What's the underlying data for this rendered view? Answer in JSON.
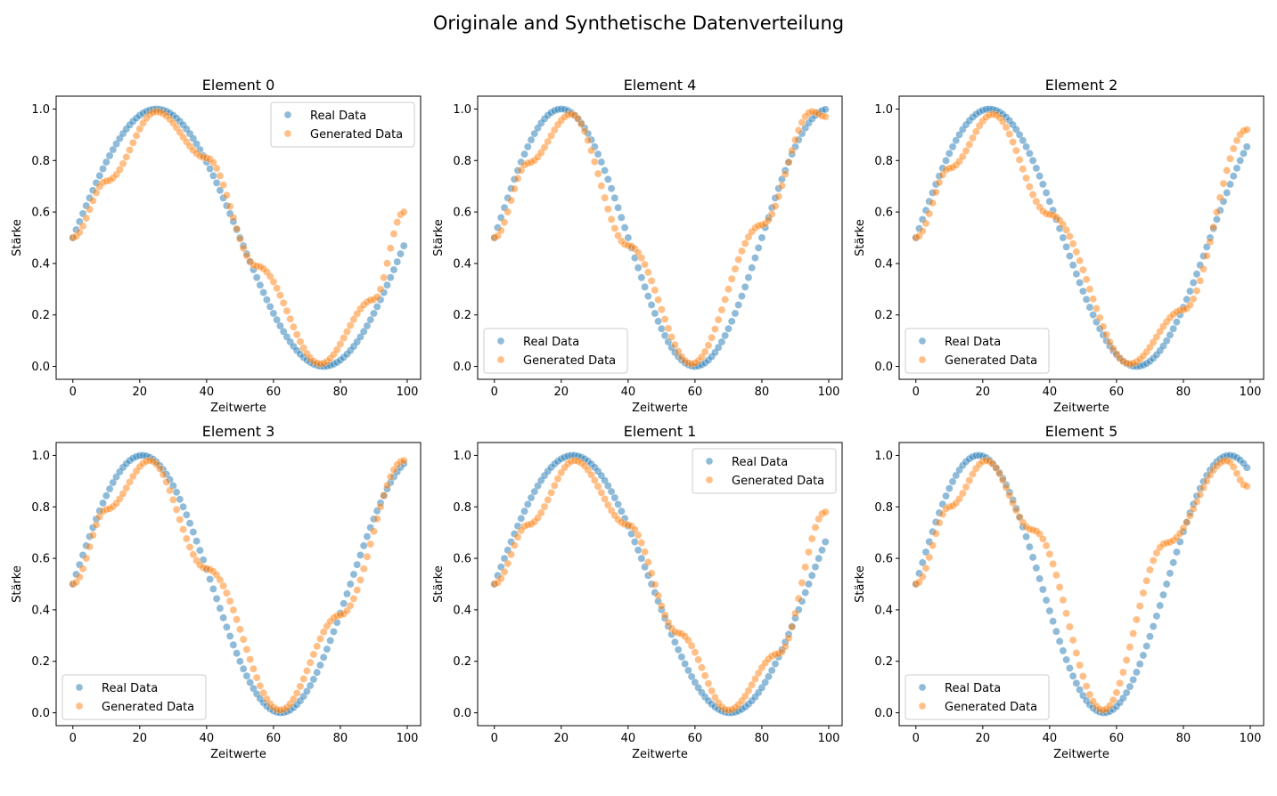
{
  "figure": {
    "title": "Originale and Synthetische Datenverteilung"
  },
  "colors": {
    "real": "#1f77b4",
    "generated": "#ff7f0e"
  },
  "legend_labels": [
    "Real Data",
    "Generated Data"
  ],
  "chart_data": [
    {
      "type": "scatter",
      "title": "Element 0",
      "xlabel": "Zeitwerte",
      "ylabel": "Stärke",
      "xlim": [
        -5,
        104
      ],
      "ylim": [
        -0.05,
        1.05
      ],
      "xticks": [
        0,
        20,
        40,
        60,
        80,
        100
      ],
      "yticks": [
        0.0,
        0.2,
        0.4,
        0.6,
        0.8,
        1.0
      ],
      "grid": false,
      "legend_position": "top-right",
      "n_points": 100,
      "series": [
        {
          "name": "Real Data",
          "function": "0.5 + 0.5*sin(2*pi*x/100)",
          "x_range": [
            0,
            99
          ]
        },
        {
          "name": "Generated Data",
          "x_range": [
            0,
            99
          ],
          "x": [
            0,
            10,
            25,
            40,
            55,
            74,
            90,
            99
          ],
          "y": [
            0.5,
            0.72,
            0.99,
            0.81,
            0.39,
            0.01,
            0.26,
            0.6
          ]
        }
      ]
    },
    {
      "type": "scatter",
      "title": "Element 4",
      "xlabel": "Zeitwerte",
      "ylabel": "Stärke",
      "xlim": [
        -5,
        104
      ],
      "ylim": [
        -0.05,
        1.05
      ],
      "xticks": [
        0,
        20,
        40,
        60,
        80,
        100
      ],
      "yticks": [
        0.0,
        0.2,
        0.4,
        0.6,
        0.8,
        1.0
      ],
      "grid": false,
      "legend_position": "bottom-left",
      "n_points": 100,
      "series": [
        {
          "name": "Real Data",
          "function": "0.5 + 0.5*sin(2*pi*x/80)",
          "x_range": [
            0,
            99
          ]
        },
        {
          "name": "Generated Data",
          "x_range": [
            0,
            99
          ],
          "x": [
            0,
            10,
            23,
            40,
            59,
            80,
            95,
            99
          ],
          "y": [
            0.5,
            0.79,
            0.98,
            0.47,
            0.01,
            0.55,
            0.99,
            0.97
          ]
        }
      ]
    },
    {
      "type": "scatter",
      "title": "Element 2",
      "xlabel": "Zeitwerte",
      "ylabel": "Stärke",
      "xlim": [
        -5,
        104
      ],
      "ylim": [
        -0.05,
        1.05
      ],
      "xticks": [
        0,
        20,
        40,
        60,
        80,
        100
      ],
      "yticks": [
        0.0,
        0.2,
        0.4,
        0.6,
        0.8,
        1.0
      ],
      "grid": false,
      "legend_position": "bottom-left",
      "n_points": 100,
      "series": [
        {
          "name": "Real Data",
          "function": "0.5 + 0.5*sin(2*pi*x/88)",
          "x_range": [
            0,
            99
          ]
        },
        {
          "name": "Generated Data",
          "x_range": [
            0,
            99
          ],
          "x": [
            0,
            10,
            23,
            40,
            64,
            80,
            99
          ],
          "y": [
            0.5,
            0.77,
            0.98,
            0.59,
            0.01,
            0.22,
            0.92
          ]
        }
      ]
    },
    {
      "type": "scatter",
      "title": "Element 3",
      "xlabel": "Zeitwerte",
      "ylabel": "Stärke",
      "xlim": [
        -5,
        104
      ],
      "ylim": [
        -0.05,
        1.05
      ],
      "xticks": [
        0,
        20,
        40,
        60,
        80,
        100
      ],
      "yticks": [
        0.0,
        0.2,
        0.4,
        0.6,
        0.8,
        1.0
      ],
      "grid": false,
      "legend_position": "bottom-left",
      "n_points": 100,
      "series": [
        {
          "name": "Real Data",
          "function": "0.5 + 0.5*sin(2*pi*x/83)",
          "x_range": [
            0,
            99
          ]
        },
        {
          "name": "Generated Data",
          "x_range": [
            0,
            99
          ],
          "x": [
            0,
            10,
            23,
            40,
            62,
            80,
            99
          ],
          "y": [
            0.5,
            0.79,
            0.98,
            0.56,
            0.01,
            0.38,
            0.98
          ]
        }
      ]
    },
    {
      "type": "scatter",
      "title": "Element 1",
      "xlabel": "Zeitwerte",
      "ylabel": "Stärke",
      "xlim": [
        -5,
        104
      ],
      "ylim": [
        -0.05,
        1.05
      ],
      "xticks": [
        0,
        20,
        40,
        60,
        80,
        100
      ],
      "yticks": [
        0.0,
        0.2,
        0.4,
        0.6,
        0.8,
        1.0
      ],
      "grid": false,
      "legend_position": "top-right",
      "n_points": 100,
      "series": [
        {
          "name": "Real Data",
          "function": "0.5 + 0.5*sin(2*pi*x/94)",
          "x_range": [
            0,
            99
          ]
        },
        {
          "name": "Generated Data",
          "x_range": [
            0,
            99
          ],
          "x": [
            0,
            10,
            24,
            40,
            55,
            70,
            85,
            99
          ],
          "y": [
            0.5,
            0.73,
            0.98,
            0.73,
            0.31,
            0.01,
            0.23,
            0.78
          ]
        }
      ]
    },
    {
      "type": "scatter",
      "title": "Element 5",
      "xlabel": "Zeitwerte",
      "ylabel": "Stärke",
      "xlim": [
        -5,
        104
      ],
      "ylim": [
        -0.05,
        1.05
      ],
      "xticks": [
        0,
        20,
        40,
        60,
        80,
        100
      ],
      "yticks": [
        0.0,
        0.2,
        0.4,
        0.6,
        0.8,
        1.0
      ],
      "grid": false,
      "legend_position": "bottom-left",
      "n_points": 100,
      "series": [
        {
          "name": "Real Data",
          "function": "0.5 + 0.5*sin(2*pi*x/75)",
          "x_range": [
            0,
            99
          ]
        },
        {
          "name": "Generated Data",
          "x_range": [
            0,
            99
          ],
          "x": [
            0,
            10,
            21,
            35,
            56,
            75,
            93,
            99
          ],
          "y": [
            0.5,
            0.8,
            0.98,
            0.71,
            0.01,
            0.66,
            0.98,
            0.88
          ]
        }
      ]
    }
  ]
}
